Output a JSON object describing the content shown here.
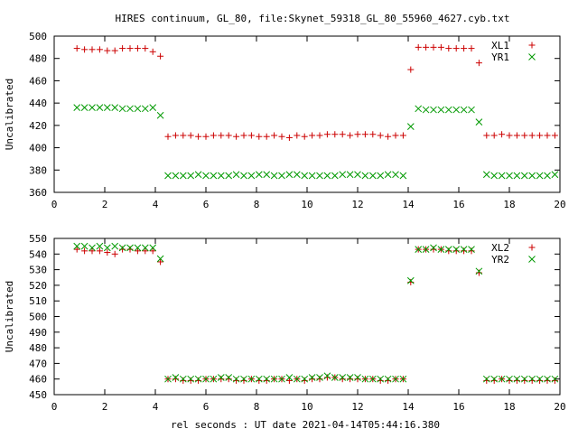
{
  "figure": {
    "title": "HIRES continuum, GL_80, file:Skynet_59318_GL_80_55960_4627.cyb.txt",
    "xlabel": "rel seconds : UT date 2021-04-14T05:44:16.380"
  },
  "chart_data": [
    {
      "type": "scatter",
      "ylabel": "Uncalibrated",
      "xlim": [
        0,
        20
      ],
      "ylim": [
        360,
        500
      ],
      "xticks": [
        0,
        2,
        4,
        6,
        8,
        10,
        12,
        14,
        16,
        18,
        20
      ],
      "yticks": [
        360,
        380,
        400,
        420,
        440,
        460,
        480,
        500
      ],
      "legend": "top-right",
      "series": [
        {
          "name": "XL1",
          "marker": "plus",
          "color": "#cc0000",
          "x": [
            0.9,
            1.2,
            1.5,
            1.8,
            2.1,
            2.4,
            2.7,
            3.0,
            3.3,
            3.6,
            3.9,
            4.2,
            4.5,
            4.8,
            5.1,
            5.4,
            5.7,
            6.0,
            6.3,
            6.6,
            6.9,
            7.2,
            7.5,
            7.8,
            8.1,
            8.4,
            8.7,
            9.0,
            9.3,
            9.6,
            9.9,
            10.2,
            10.5,
            10.8,
            11.1,
            11.4,
            11.7,
            12.0,
            12.3,
            12.6,
            12.9,
            13.2,
            13.5,
            13.8,
            14.1,
            14.4,
            14.7,
            15.0,
            15.3,
            15.6,
            15.9,
            16.2,
            16.5,
            16.8,
            17.1,
            17.4,
            17.7,
            18.0,
            18.3,
            18.6,
            18.9,
            19.2,
            19.5,
            19.8
          ],
          "y": [
            489,
            488,
            488,
            488,
            487,
            487,
            489,
            489,
            489,
            489,
            486,
            482,
            410,
            411,
            411,
            411,
            410,
            410,
            411,
            411,
            411,
            410,
            411,
            411,
            410,
            410,
            411,
            410,
            409,
            411,
            410,
            411,
            411,
            412,
            412,
            412,
            411,
            412,
            412,
            412,
            411,
            410,
            411,
            411,
            470,
            490,
            490,
            490,
            490,
            489,
            489,
            489,
            489,
            476,
            411,
            411,
            412,
            411,
            411,
            411,
            411,
            411,
            411,
            411
          ]
        },
        {
          "name": "YR1",
          "marker": "cross",
          "color": "#009900",
          "x": [
            0.9,
            1.2,
            1.5,
            1.8,
            2.1,
            2.4,
            2.7,
            3.0,
            3.3,
            3.6,
            3.9,
            4.2,
            4.5,
            4.8,
            5.1,
            5.4,
            5.7,
            6.0,
            6.3,
            6.6,
            6.9,
            7.2,
            7.5,
            7.8,
            8.1,
            8.4,
            8.7,
            9.0,
            9.3,
            9.6,
            9.9,
            10.2,
            10.5,
            10.8,
            11.1,
            11.4,
            11.7,
            12.0,
            12.3,
            12.6,
            12.9,
            13.2,
            13.5,
            13.8,
            14.1,
            14.4,
            14.7,
            15.0,
            15.3,
            15.6,
            15.9,
            16.2,
            16.5,
            16.8,
            17.1,
            17.4,
            17.7,
            18.0,
            18.3,
            18.6,
            18.9,
            19.2,
            19.5,
            19.8
          ],
          "y": [
            436,
            436,
            436,
            436,
            436,
            436,
            435,
            435,
            435,
            435,
            436,
            429,
            375,
            375,
            375,
            375,
            376,
            375,
            375,
            375,
            375,
            376,
            375,
            375,
            376,
            376,
            375,
            375,
            376,
            376,
            375,
            375,
            375,
            375,
            375,
            376,
            376,
            376,
            375,
            375,
            375,
            376,
            376,
            375,
            419,
            435,
            434,
            434,
            434,
            434,
            434,
            434,
            434,
            423,
            376,
            375,
            375,
            375,
            375,
            375,
            375,
            375,
            375,
            376
          ]
        }
      ]
    },
    {
      "type": "scatter",
      "ylabel": "Uncalibrated",
      "xlim": [
        0,
        20
      ],
      "ylim": [
        450,
        550
      ],
      "xticks": [
        0,
        2,
        4,
        6,
        8,
        10,
        12,
        14,
        16,
        18,
        20
      ],
      "yticks": [
        450,
        460,
        470,
        480,
        490,
        500,
        510,
        520,
        530,
        540,
        550
      ],
      "legend": "top-right",
      "series": [
        {
          "name": "XL2",
          "marker": "plus",
          "color": "#cc0000",
          "x": [
            0.9,
            1.2,
            1.5,
            1.8,
            2.1,
            2.4,
            2.7,
            3.0,
            3.3,
            3.6,
            3.9,
            4.2,
            4.5,
            4.8,
            5.1,
            5.4,
            5.7,
            6.0,
            6.3,
            6.6,
            6.9,
            7.2,
            7.5,
            7.8,
            8.1,
            8.4,
            8.7,
            9.0,
            9.3,
            9.6,
            9.9,
            10.2,
            10.5,
            10.8,
            11.1,
            11.4,
            11.7,
            12.0,
            12.3,
            12.6,
            12.9,
            13.2,
            13.5,
            13.8,
            14.1,
            14.4,
            14.7,
            15.0,
            15.3,
            15.6,
            15.9,
            16.2,
            16.5,
            16.8,
            17.1,
            17.4,
            17.7,
            18.0,
            18.3,
            18.6,
            18.9,
            19.2,
            19.5,
            19.8
          ],
          "y": [
            543,
            542,
            542,
            542,
            541,
            540,
            543,
            543,
            542,
            542,
            542,
            535,
            460,
            460,
            459,
            459,
            459,
            460,
            460,
            460,
            460,
            459,
            459,
            460,
            459,
            459,
            460,
            460,
            459,
            460,
            459,
            460,
            460,
            461,
            461,
            460,
            460,
            460,
            460,
            460,
            459,
            459,
            460,
            460,
            522,
            543,
            543,
            543,
            543,
            542,
            542,
            542,
            542,
            528,
            459,
            459,
            460,
            459,
            459,
            459,
            459,
            459,
            459,
            459
          ]
        },
        {
          "name": "YR2",
          "marker": "cross",
          "color": "#009900",
          "x": [
            0.9,
            1.2,
            1.5,
            1.8,
            2.1,
            2.4,
            2.7,
            3.0,
            3.3,
            3.6,
            3.9,
            4.2,
            4.5,
            4.8,
            5.1,
            5.4,
            5.7,
            6.0,
            6.3,
            6.6,
            6.9,
            7.2,
            7.5,
            7.8,
            8.1,
            8.4,
            8.7,
            9.0,
            9.3,
            9.6,
            9.9,
            10.2,
            10.5,
            10.8,
            11.1,
            11.4,
            11.7,
            12.0,
            12.3,
            12.6,
            12.9,
            13.2,
            13.5,
            13.8,
            14.1,
            14.4,
            14.7,
            15.0,
            15.3,
            15.6,
            15.9,
            16.2,
            16.5,
            16.8,
            17.1,
            17.4,
            17.7,
            18.0,
            18.3,
            18.6,
            18.9,
            19.2,
            19.5,
            19.8
          ],
          "y": [
            545,
            545,
            544,
            545,
            544,
            545,
            544,
            544,
            544,
            544,
            544,
            537,
            460,
            461,
            460,
            460,
            460,
            460,
            460,
            461,
            461,
            460,
            460,
            460,
            460,
            460,
            460,
            460,
            461,
            460,
            460,
            461,
            461,
            462,
            461,
            461,
            461,
            461,
            460,
            460,
            460,
            460,
            460,
            460,
            523,
            543,
            543,
            544,
            543,
            543,
            543,
            543,
            543,
            529,
            460,
            460,
            460,
            460,
            460,
            460,
            460,
            460,
            460,
            460
          ]
        }
      ]
    }
  ]
}
